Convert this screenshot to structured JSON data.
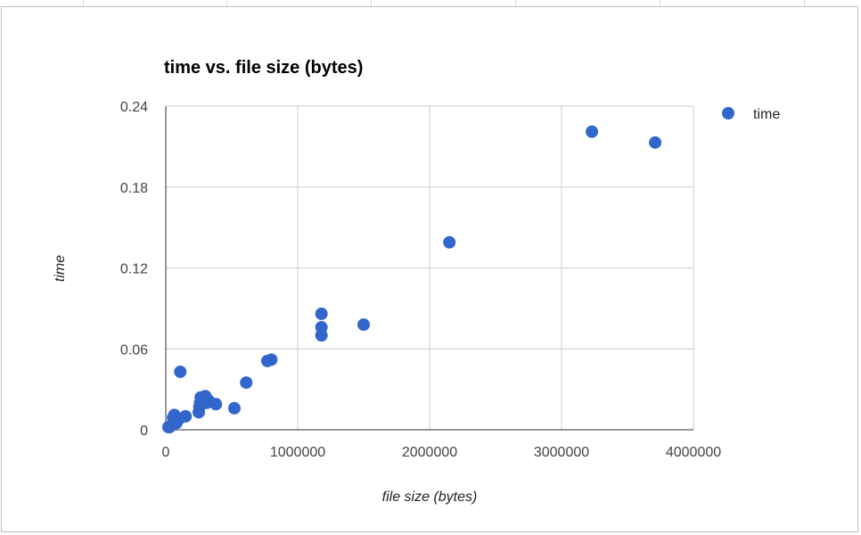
{
  "chart_data": {
    "type": "scatter",
    "title": "time vs. file size (bytes)",
    "xlabel": "file size (bytes)",
    "ylabel": "time",
    "xlim": [
      0,
      4000000
    ],
    "ylim": [
      0,
      0.24
    ],
    "x_ticks": [
      "0",
      "1000000",
      "2000000",
      "3000000",
      "4000000"
    ],
    "y_ticks": [
      "0",
      "0.06",
      "0.12",
      "0.18",
      "0.24"
    ],
    "grid": true,
    "legend_position": "right",
    "series": [
      {
        "name": "time",
        "color": "#3366cc",
        "points": [
          [
            20000,
            0.002
          ],
          [
            30000,
            0.002
          ],
          [
            40000,
            0.003
          ],
          [
            50000,
            0.004
          ],
          [
            55000,
            0.009
          ],
          [
            65000,
            0.011
          ],
          [
            70000,
            0.006
          ],
          [
            80000,
            0.005
          ],
          [
            90000,
            0.007
          ],
          [
            100000,
            0.008
          ],
          [
            110000,
            0.043
          ],
          [
            150000,
            0.01
          ],
          [
            250000,
            0.013
          ],
          [
            255000,
            0.017
          ],
          [
            260000,
            0.02
          ],
          [
            265000,
            0.024
          ],
          [
            280000,
            0.022
          ],
          [
            300000,
            0.025
          ],
          [
            310000,
            0.02
          ],
          [
            320000,
            0.022
          ],
          [
            330000,
            0.021
          ],
          [
            380000,
            0.019
          ],
          [
            520000,
            0.016
          ],
          [
            610000,
            0.035
          ],
          [
            770000,
            0.051
          ],
          [
            800000,
            0.052
          ],
          [
            1180000,
            0.086
          ],
          [
            1180000,
            0.076
          ],
          [
            1180000,
            0.07
          ],
          [
            1500000,
            0.078
          ],
          [
            2150000,
            0.139
          ],
          [
            3230000,
            0.221
          ],
          [
            3710000,
            0.213
          ]
        ]
      }
    ]
  }
}
